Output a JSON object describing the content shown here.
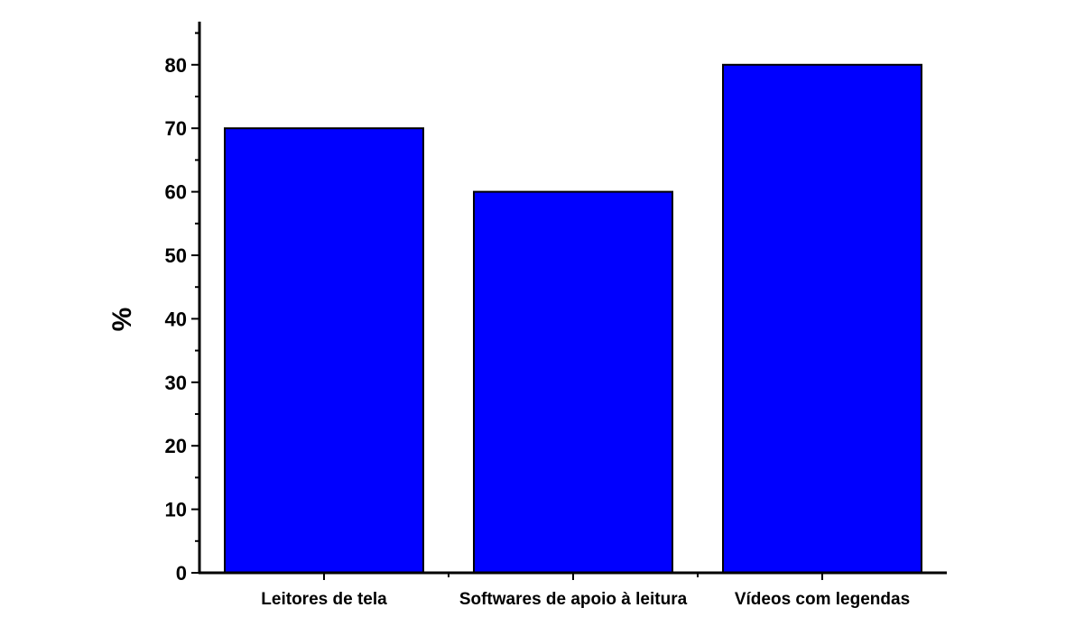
{
  "chart_data": {
    "type": "bar",
    "categories": [
      "Leitores de tela",
      "Softwares de apoio à leitura",
      "Vídeos com legendas"
    ],
    "values": [
      70,
      60,
      80
    ],
    "title": "",
    "xlabel": "",
    "ylabel": "%",
    "ylim": [
      0,
      87
    ],
    "yticks": [
      0,
      10,
      20,
      30,
      40,
      50,
      60,
      70,
      80
    ],
    "y_minor_step": 5,
    "grid": false,
    "legend": "none",
    "bar_color": "#0000ff",
    "edge_color": "#000000"
  }
}
